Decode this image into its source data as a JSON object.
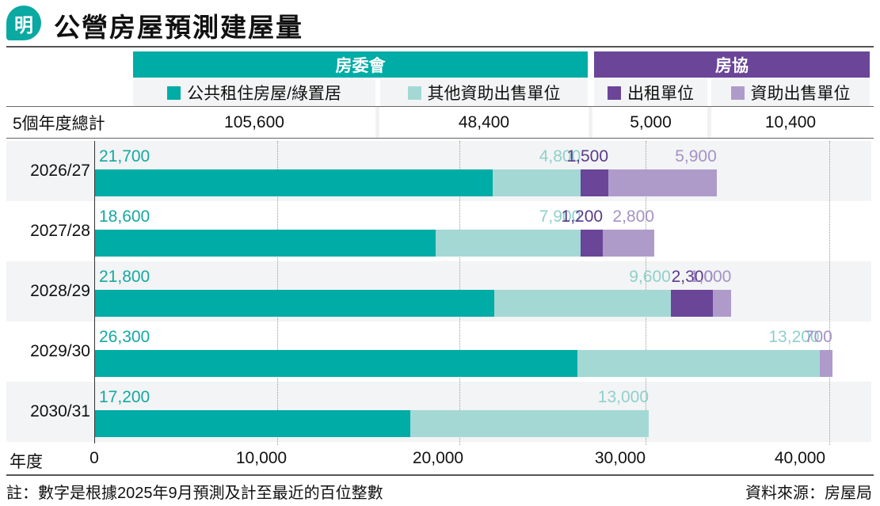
{
  "header": {
    "logo_char": "明",
    "title": "公營房屋預測建屋量"
  },
  "groups": [
    {
      "label": "房委會",
      "color": "#00aca6"
    },
    {
      "label": "房協",
      "color": "#6a4598"
    }
  ],
  "legend": [
    {
      "label": "公共租住房屋/綠置居",
      "color": "#00aca6"
    },
    {
      "label": "其他資助出售單位",
      "color": "#a4d8d5"
    },
    {
      "label": "出租單位",
      "color": "#6a4598"
    },
    {
      "label": "資助出售單位",
      "color": "#af9bca"
    }
  ],
  "totals": {
    "label": "5個年度總計",
    "values": [
      "105,600",
      "48,400",
      "5,000",
      "10,400"
    ]
  },
  "footer": {
    "note": "註：數字是根據2025年9月預測及計至最近的百位整數",
    "source": "資料來源：房屋局"
  },
  "chart_data": {
    "type": "bar",
    "orientation": "horizontal",
    "stacked": true,
    "title": "公營房屋預測建屋量",
    "xlabel": "",
    "ylabel": "年度",
    "categories": [
      "2026/27",
      "2027/28",
      "2028/29",
      "2029/30",
      "2030/31"
    ],
    "series": [
      {
        "name": "公共租住房屋/綠置居",
        "group": "房委會",
        "color": "#00aca6",
        "label_color": "#13a9a1",
        "values": [
          21700,
          18600,
          21800,
          26300,
          17200
        ],
        "labels": [
          "21,700",
          "18,600",
          "21,800",
          "26,300",
          "17,200"
        ]
      },
      {
        "name": "其他資助出售單位",
        "group": "房委會",
        "color": "#a4d8d5",
        "label_color": "#8fd0cb",
        "values": [
          4800,
          7900,
          9600,
          13200,
          13000
        ],
        "labels": [
          "4,800",
          "7,900",
          "9,600",
          "13,200",
          "13,000"
        ]
      },
      {
        "name": "出租單位",
        "group": "房協",
        "color": "#6a4598",
        "label_color": "#5a3a8c",
        "values": [
          1500,
          1200,
          2300,
          0,
          0
        ],
        "labels": [
          "1,500",
          "1,200",
          "2,300",
          "",
          ""
        ]
      },
      {
        "name": "資助出售單位",
        "group": "房協",
        "color": "#af9bca",
        "label_color": "#a592c6",
        "values": [
          5900,
          2800,
          1000,
          700,
          0
        ],
        "labels": [
          "5,900",
          "2,800",
          "1,000",
          "700",
          ""
        ]
      }
    ],
    "xticks": [
      0,
      10000,
      20000,
      30000,
      40000
    ],
    "xtick_labels": [
      "0",
      "10,000",
      "20,000",
      "30,000",
      "40,000"
    ],
    "xlim": [
      0,
      42000
    ],
    "grid": true,
    "legend_position": "top"
  }
}
